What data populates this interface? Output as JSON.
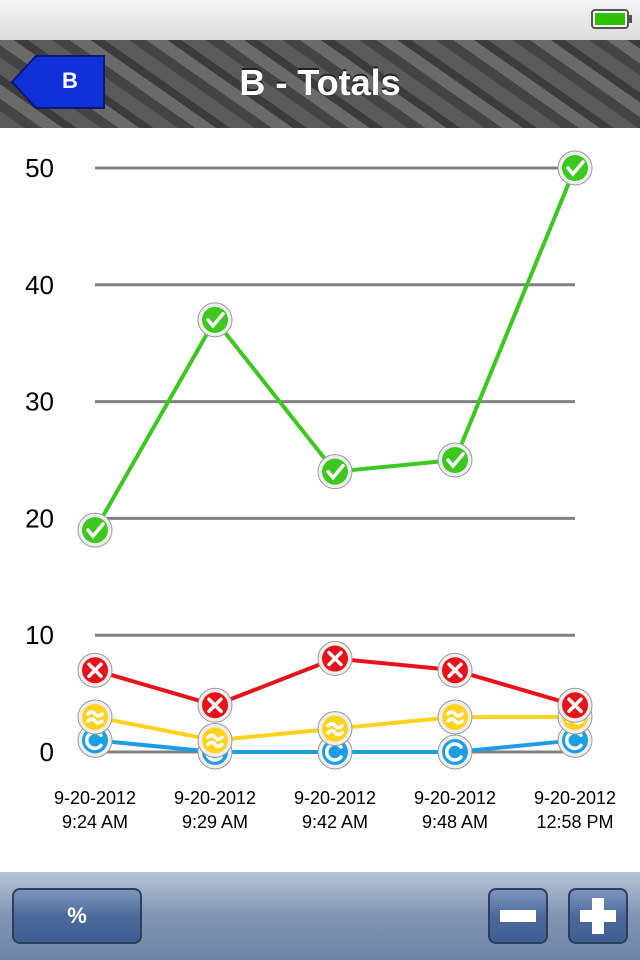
{
  "nav": {
    "back": "B",
    "title": "B - Totals"
  },
  "chart_data": {
    "type": "line",
    "categories": [
      "9-20-2012 9:24 AM",
      "9-20-2012 9:29 AM",
      "9-20-2012 9:42 AM",
      "9-20-2012 9:48 AM",
      "9-20-2012 12:58 PM"
    ],
    "series": [
      {
        "color": "#3cc81e",
        "marker": "check",
        "values": [
          19,
          37,
          24,
          25,
          50
        ]
      },
      {
        "color": "#e8121a",
        "marker": "cross",
        "values": [
          7,
          4,
          8,
          7,
          4
        ]
      },
      {
        "color": "#ffd21e",
        "marker": "approx",
        "values": [
          3,
          1,
          2,
          3,
          3
        ]
      },
      {
        "color": "#1e9ee0",
        "marker": "c",
        "values": [
          1,
          0,
          0,
          0,
          1
        ]
      }
    ],
    "ylim": [
      0,
      50
    ],
    "yticks": [
      0,
      10,
      20,
      30,
      40,
      50
    ],
    "grid": true
  },
  "toolbar": {
    "percent": "%"
  }
}
